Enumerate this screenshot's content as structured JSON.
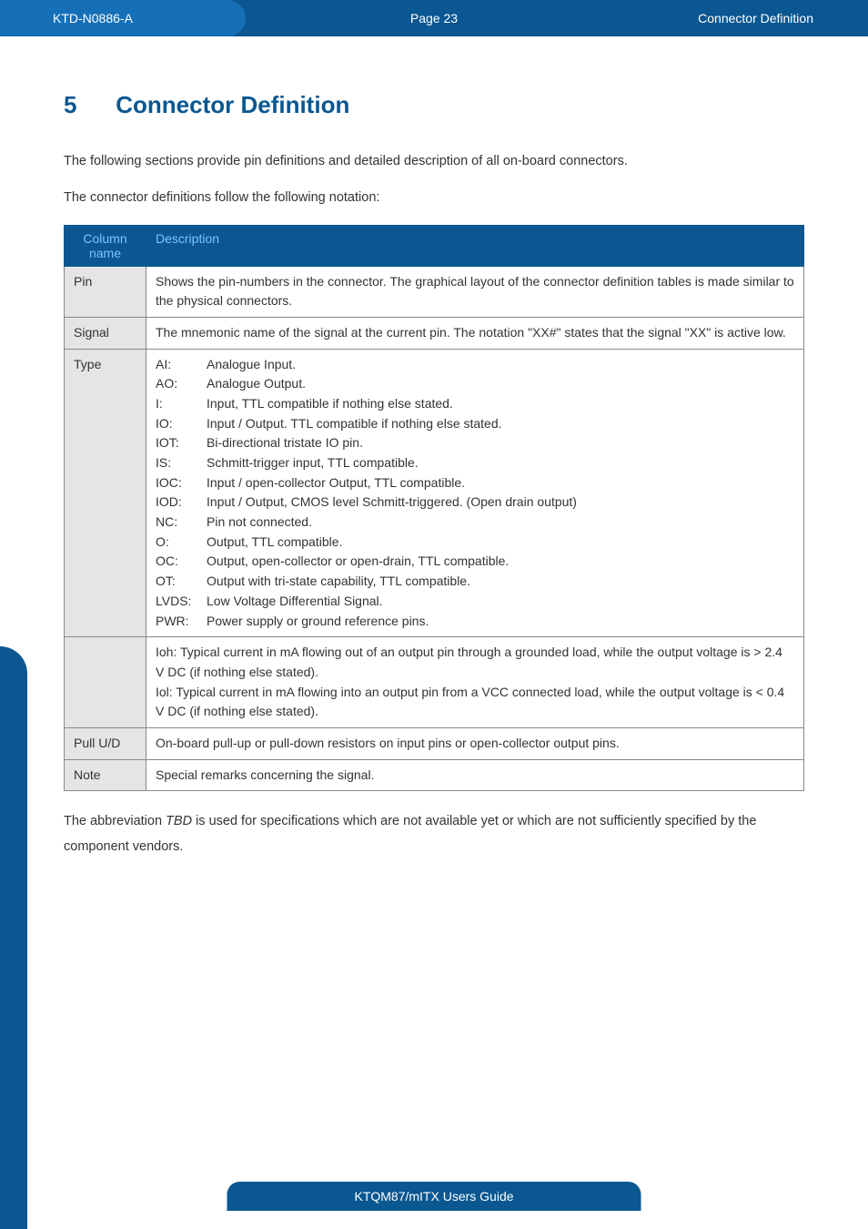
{
  "header": {
    "left": "KTD-N0886-A",
    "center": "Page 23",
    "right": "Connector Definition"
  },
  "section": {
    "number": "5",
    "title": "Connector Definition"
  },
  "intro1": "The following sections provide pin definitions and detailed description of all on-board connectors.",
  "intro2": "The connector definitions follow the following notation:",
  "table": {
    "headers": {
      "col1": "Column name",
      "col2": "Description"
    },
    "rows": {
      "pin": {
        "label": "Pin",
        "desc": "Shows the pin-numbers in the connector. The graphical layout of the connector definition tables is made similar to the physical connectors."
      },
      "signal": {
        "label": "Signal",
        "desc": "The mnemonic name of the signal at the current pin. The notation \"XX#\" states that the signal \"XX\" is active low."
      },
      "type": {
        "label": "Type",
        "items": [
          {
            "k": "AI:",
            "v": "Analogue Input."
          },
          {
            "k": "AO:",
            "v": "Analogue Output."
          },
          {
            "k": "I:",
            "v": "Input, TTL compatible if nothing else stated."
          },
          {
            "k": "IO:",
            "v": "Input / Output. TTL compatible if nothing else stated."
          },
          {
            "k": "IOT:",
            "v": "Bi-directional tristate IO pin."
          },
          {
            "k": "IS:",
            "v": "Schmitt-trigger input, TTL compatible."
          },
          {
            "k": "IOC:",
            "v": "Input / open-collector Output, TTL compatible."
          },
          {
            "k": "IOD:",
            "v": "Input / Output, CMOS level Schmitt-triggered. (Open drain output)"
          },
          {
            "k": "NC:",
            "v": "Pin not connected."
          },
          {
            "k": "O:",
            "v": "Output, TTL compatible."
          },
          {
            "k": "OC:",
            "v": "Output, open-collector or open-drain, TTL compatible."
          },
          {
            "k": "OT:",
            "v": "Output with tri-state capability, TTL compatible."
          },
          {
            "k": "LVDS:",
            "v": "Low Voltage Differential Signal."
          },
          {
            "k": "PWR:",
            "v": "Power supply or ground reference pins."
          }
        ]
      },
      "iohiol": {
        "line1": "Ioh: Typical current in mA flowing out of an output pin through a grounded load, while the output voltage is > 2.4 V DC (if nothing else stated).",
        "line2": "Iol: Typical current in mA flowing into an output pin from a VCC connected load, while the output voltage is < 0.4 V DC (if nothing else stated)."
      },
      "pull": {
        "label": "Pull U/D",
        "desc": "On-board pull-up or pull-down resistors on input pins or open-collector output pins."
      },
      "note": {
        "label": "Note",
        "desc": "Special remarks concerning the signal."
      }
    }
  },
  "post": {
    "pre": "The abbreviation ",
    "tbd": "TBD",
    "post": " is used for specifications which are not available yet or which are not sufficiently specified by the component vendors."
  },
  "footer": "KTQM87/mITX Users Guide"
}
